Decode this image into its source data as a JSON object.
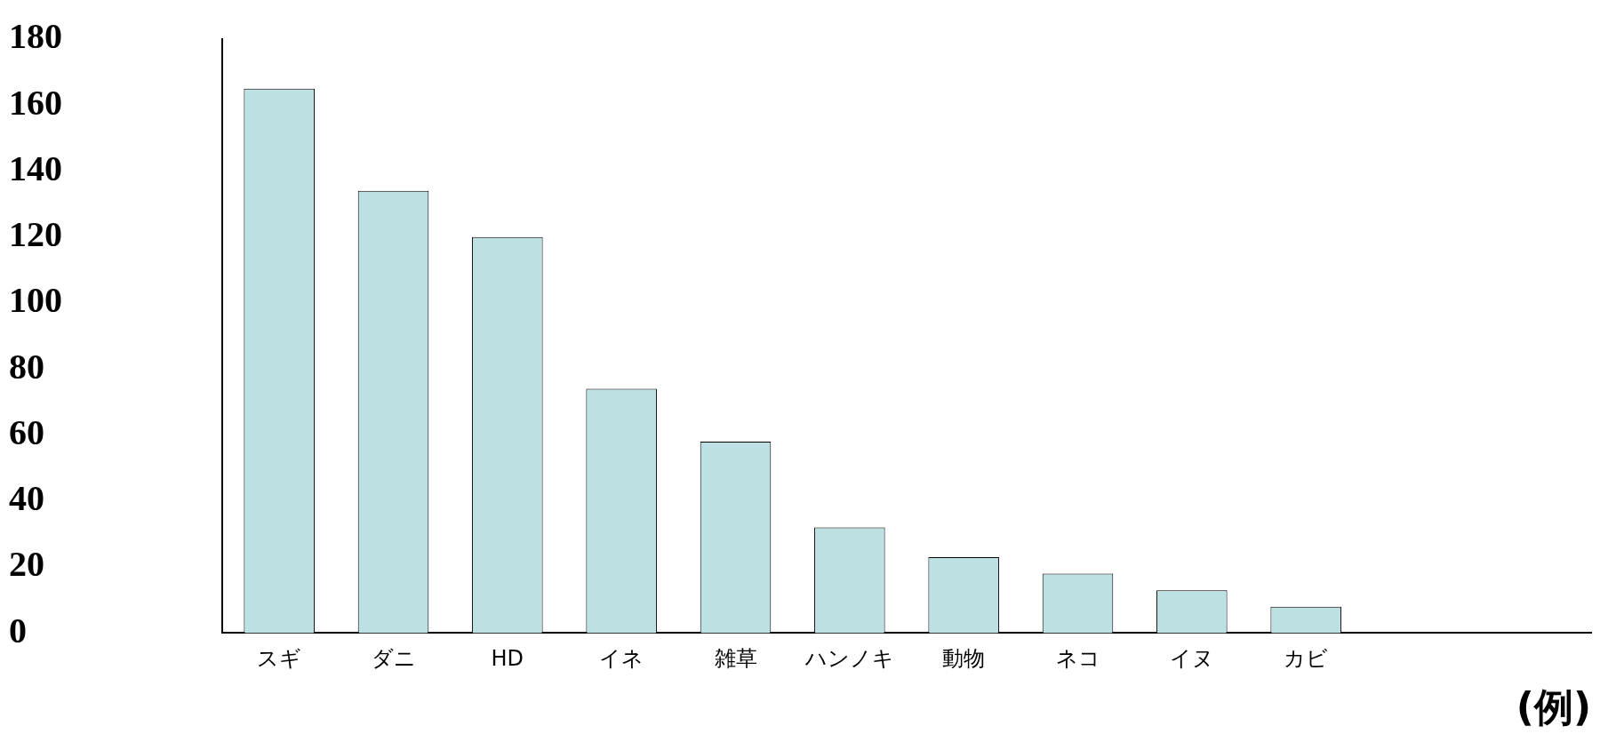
{
  "chart_data": {
    "type": "bar",
    "categories": [
      "スギ",
      "ダニ",
      "HD",
      "イネ",
      "雑草",
      "ハンノキ",
      "動物",
      "ネコ",
      "イヌ",
      "カビ",
      null,
      null
    ],
    "values": [
      165,
      134,
      120,
      74,
      58,
      32,
      23,
      18,
      13,
      8,
      null,
      null
    ],
    "color": "#bde0e2",
    "xlabel": "(例)",
    "ylim": [
      0,
      180
    ],
    "yticks": [
      0,
      20,
      40,
      60,
      80,
      100,
      120,
      140,
      160,
      180
    ],
    "grid": false,
    "legend": false
  }
}
